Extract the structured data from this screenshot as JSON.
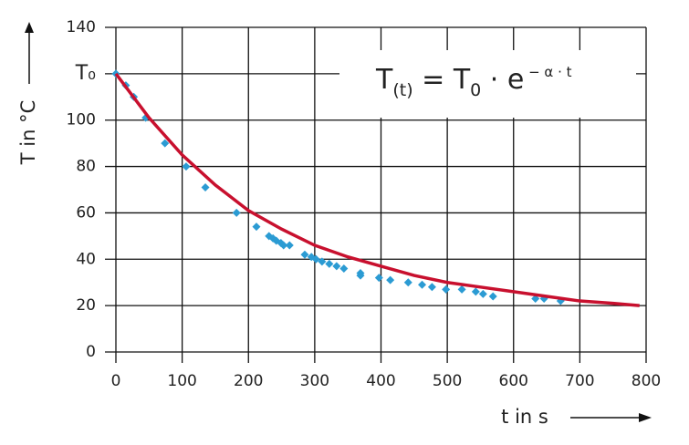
{
  "chart_data": {
    "type": "scatter",
    "x_label": "t in s",
    "y_label": "T in °C",
    "formula": [
      {
        "text": "T"
      },
      {
        "text": "(t)",
        "pos": "sub"
      },
      {
        "text": " = T"
      },
      {
        "text": "0",
        "pos": "sub"
      },
      {
        "text": " · e"
      },
      {
        "text": " − α · t",
        "pos": "sup"
      }
    ],
    "xlim": [
      0,
      800
    ],
    "xticks": [
      0,
      100,
      200,
      300,
      400,
      500,
      600,
      700,
      800
    ],
    "ylim": [
      0,
      140
    ],
    "yticks": [
      0,
      20,
      40,
      60,
      80,
      100,
      {
        "value": 120,
        "label": "T₀"
      },
      140
    ],
    "grid": true,
    "series": [
      {
        "type": "scatter",
        "color": "#2b9bd3",
        "x": [
          0,
          15,
          27,
          45,
          74,
          106,
          135,
          182,
          212,
          231,
          237,
          242,
          249,
          253,
          262,
          285,
          295,
          302,
          311,
          322,
          333,
          344,
          369,
          369,
          397,
          414,
          441,
          462,
          477,
          498,
          522,
          543,
          554,
          569,
          633,
          646,
          671
        ],
        "values": [
          120,
          115,
          110,
          101,
          90,
          80,
          71,
          60,
          54,
          50,
          49,
          48,
          47,
          46,
          46,
          42,
          41,
          40,
          39,
          38,
          37,
          36,
          34,
          33,
          32,
          31,
          30,
          29,
          28,
          27,
          27,
          26,
          25,
          24,
          23,
          23,
          22
        ]
      },
      {
        "type": "line",
        "color": "#c8102e",
        "x": [
          0,
          50,
          100,
          150,
          200,
          250,
          300,
          350,
          400,
          450,
          500,
          550,
          600,
          650,
          700,
          750,
          790
        ],
        "values": [
          120,
          101,
          85,
          72,
          61,
          53,
          46,
          41,
          37,
          33,
          30,
          28,
          26,
          24,
          22,
          21,
          20
        ]
      }
    ]
  }
}
